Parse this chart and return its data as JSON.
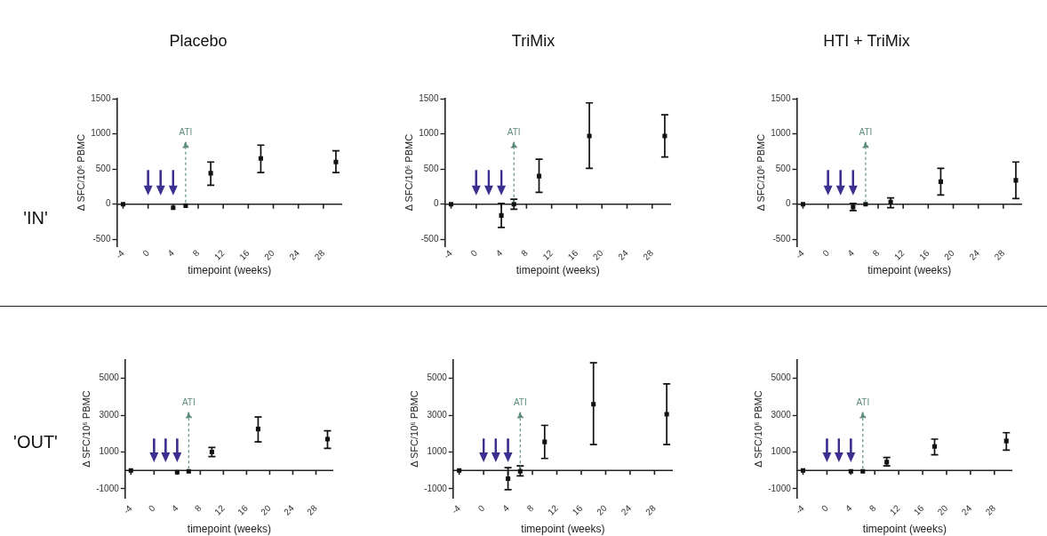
{
  "chart_data": [
    {
      "type": "scatter",
      "title": "Placebo",
      "annotations": [
        "'IN'"
      ],
      "xlabel": "timepoint (weeks)",
      "ylabel": "Δ SFC/10⁶ PBMC",
      "x": [
        -4,
        4,
        6,
        10,
        18,
        30
      ],
      "values": [
        0,
        -50,
        -20,
        440,
        650,
        600
      ],
      "errors": [
        null,
        null,
        null,
        [
          270,
          600
        ],
        [
          450,
          840
        ],
        [
          450,
          760
        ]
      ],
      "color": "#111111",
      "marker": "square",
      "xlim": [
        -5,
        31
      ],
      "xticks": [
        -4,
        0,
        4,
        8,
        12,
        16,
        20,
        24,
        28
      ],
      "ylim": [
        -600,
        1500
      ],
      "yticks": [
        -500,
        0,
        500,
        1000,
        1500
      ],
      "ref_lines": [
        {
          "axis": "x",
          "value": 0,
          "color": "#3b2f8f",
          "line_style": "solid"
        },
        {
          "axis": "x",
          "value": 2,
          "color": "#3b2f8f",
          "line_style": "solid"
        },
        {
          "axis": "x",
          "value": 4,
          "color": "#3b2f8f",
          "line_style": "solid"
        },
        {
          "axis": "x",
          "value": 6,
          "label": "ATI",
          "color": "#5d8c7e",
          "line_style": "dashed"
        }
      ]
    },
    {
      "type": "scatter",
      "title": "TriMix",
      "xlabel": "timepoint (weeks)",
      "ylabel": "Δ SFC/10⁶ PBMC",
      "x": [
        -4,
        4,
        6,
        10,
        18,
        30
      ],
      "values": [
        0,
        -160,
        0,
        400,
        970,
        970
      ],
      "errors": [
        null,
        [
          -330,
          10
        ],
        [
          -70,
          70
        ],
        [
          170,
          640
        ],
        [
          510,
          1440
        ],
        [
          670,
          1270
        ]
      ],
      "color": "#111111",
      "marker": "square",
      "xlim": [
        -5,
        31
      ],
      "xticks": [
        -4,
        0,
        4,
        8,
        12,
        16,
        20,
        24,
        28
      ],
      "ylim": [
        -600,
        1500
      ],
      "yticks": [
        -500,
        0,
        500,
        1000,
        1500
      ],
      "ref_lines": [
        {
          "axis": "x",
          "value": 0,
          "color": "#3b2f8f",
          "line_style": "solid"
        },
        {
          "axis": "x",
          "value": 2,
          "color": "#3b2f8f",
          "line_style": "solid"
        },
        {
          "axis": "x",
          "value": 4,
          "color": "#3b2f8f",
          "line_style": "solid"
        },
        {
          "axis": "x",
          "value": 6,
          "label": "ATI",
          "color": "#5d8c7e",
          "line_style": "dashed"
        }
      ]
    },
    {
      "type": "scatter",
      "title": "HTI + TriMix",
      "xlabel": "timepoint (weeks)",
      "ylabel": "Δ SFC/10⁶ PBMC",
      "x": [
        -4,
        4,
        6,
        10,
        18,
        30
      ],
      "values": [
        0,
        -40,
        0,
        30,
        320,
        340
      ],
      "errors": [
        null,
        [
          -90,
          10
        ],
        null,
        [
          -50,
          90
        ],
        [
          130,
          510
        ],
        [
          80,
          600
        ]
      ],
      "color": "#111111",
      "marker": "square",
      "xlim": [
        -5,
        31
      ],
      "xticks": [
        -4,
        0,
        4,
        8,
        12,
        16,
        20,
        24,
        28
      ],
      "ylim": [
        -600,
        1500
      ],
      "yticks": [
        -500,
        0,
        500,
        1000,
        1500
      ],
      "ref_lines": [
        {
          "axis": "x",
          "value": 0,
          "color": "#3b2f8f",
          "line_style": "solid"
        },
        {
          "axis": "x",
          "value": 2,
          "color": "#3b2f8f",
          "line_style": "solid"
        },
        {
          "axis": "x",
          "value": 4,
          "color": "#3b2f8f",
          "line_style": "solid"
        },
        {
          "axis": "x",
          "value": 6,
          "label": "ATI",
          "color": "#5d8c7e",
          "line_style": "dashed"
        }
      ]
    },
    {
      "type": "scatter",
      "annotations": [
        "'OUT'"
      ],
      "xlabel": "timepoint (weeks)",
      "ylabel": "Δ SFC/10⁶ PBMC",
      "x": [
        -4,
        4,
        6,
        10,
        18,
        30
      ],
      "values": [
        0,
        -100,
        -50,
        1000,
        2250,
        1700
      ],
      "errors": [
        null,
        null,
        null,
        [
          750,
          1250
        ],
        [
          1550,
          2900
        ],
        [
          1200,
          2150
        ]
      ],
      "color": "#111111",
      "marker": "square",
      "xlim": [
        -5,
        31
      ],
      "xticks": [
        -4,
        0,
        4,
        8,
        12,
        16,
        20,
        24,
        28
      ],
      "ylim": [
        -1500,
        6000
      ],
      "yticks": [
        -1000,
        1000,
        3000,
        5000
      ],
      "ref_lines": [
        {
          "axis": "x",
          "value": 0,
          "color": "#3b2f8f",
          "line_style": "solid"
        },
        {
          "axis": "x",
          "value": 2,
          "color": "#3b2f8f",
          "line_style": "solid"
        },
        {
          "axis": "x",
          "value": 4,
          "color": "#3b2f8f",
          "line_style": "solid"
        },
        {
          "axis": "x",
          "value": 6,
          "label": "ATI",
          "color": "#5d8c7e",
          "line_style": "dashed"
        }
      ]
    },
    {
      "type": "scatter",
      "xlabel": "timepoint (weeks)",
      "ylabel": "Δ SFC/10⁶ PBMC",
      "x": [
        -4,
        4,
        6,
        10,
        18,
        30
      ],
      "values": [
        0,
        -450,
        -50,
        1550,
        3600,
        3050
      ],
      "errors": [
        null,
        [
          -1050,
          150
        ],
        [
          -300,
          250
        ],
        [
          650,
          2450
        ],
        [
          1400,
          5850
        ],
        [
          1400,
          4700
        ]
      ],
      "color": "#111111",
      "marker": "square",
      "xlim": [
        -5,
        31
      ],
      "xticks": [
        -4,
        0,
        4,
        8,
        12,
        16,
        20,
        24,
        28
      ],
      "ylim": [
        -1500,
        6000
      ],
      "yticks": [
        -1000,
        1000,
        3000,
        5000
      ],
      "ref_lines": [
        {
          "axis": "x",
          "value": 0,
          "color": "#3b2f8f",
          "line_style": "solid"
        },
        {
          "axis": "x",
          "value": 2,
          "color": "#3b2f8f",
          "line_style": "solid"
        },
        {
          "axis": "x",
          "value": 4,
          "color": "#3b2f8f",
          "line_style": "solid"
        },
        {
          "axis": "x",
          "value": 6,
          "label": "ATI",
          "color": "#5d8c7e",
          "line_style": "dashed"
        }
      ]
    },
    {
      "type": "scatter",
      "xlabel": "timepoint (weeks)",
      "ylabel": "Δ SFC/10⁶ PBMC",
      "x": [
        -4,
        4,
        6,
        10,
        18,
        30
      ],
      "values": [
        0,
        -50,
        -50,
        450,
        1300,
        1600
      ],
      "errors": [
        null,
        null,
        null,
        [
          250,
          700
        ],
        [
          850,
          1700
        ],
        [
          1100,
          2050
        ]
      ],
      "color": "#111111",
      "marker": "square",
      "xlim": [
        -5,
        31
      ],
      "xticks": [
        -4,
        0,
        4,
        8,
        12,
        16,
        20,
        24,
        28
      ],
      "ylim": [
        -1500,
        6000
      ],
      "yticks": [
        -1000,
        1000,
        3000,
        5000
      ],
      "ref_lines": [
        {
          "axis": "x",
          "value": 0,
          "color": "#3b2f8f",
          "line_style": "solid"
        },
        {
          "axis": "x",
          "value": 2,
          "color": "#3b2f8f",
          "line_style": "solid"
        },
        {
          "axis": "x",
          "value": 4,
          "color": "#3b2f8f",
          "line_style": "solid"
        },
        {
          "axis": "x",
          "value": 6,
          "label": "ATI",
          "color": "#5d8c7e",
          "line_style": "dashed"
        }
      ]
    }
  ]
}
